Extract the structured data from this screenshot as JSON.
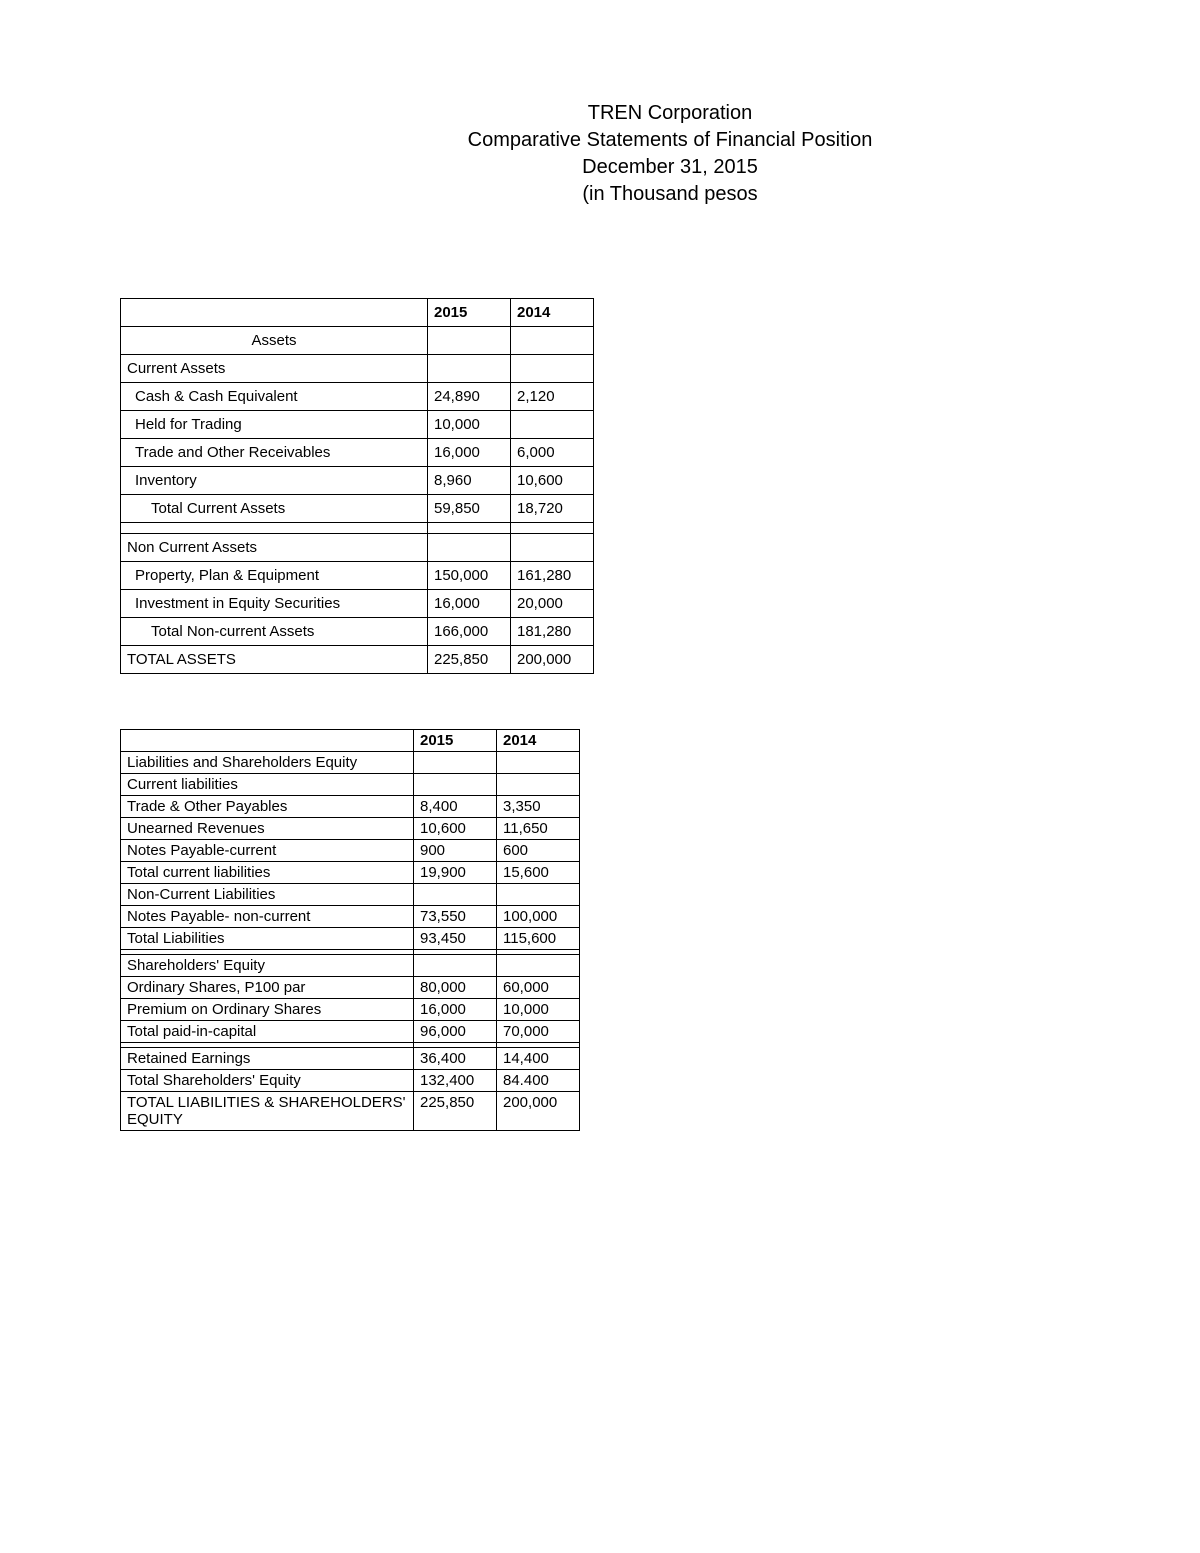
{
  "header": {
    "line1": "TREN Corporation",
    "line2": "Comparative Statements of Financial Position",
    "line3": "December 31, 2015",
    "line4": "(in Thousand pesos"
  },
  "table1": {
    "col1": "2015",
    "col2": "2014",
    "rows": [
      {
        "label": "Assets",
        "c2015": "",
        "c2014": "",
        "class": "section-center"
      },
      {
        "label": "Current Assets",
        "c2015": "",
        "c2014": "",
        "class": ""
      },
      {
        "label": "Cash & Cash Equivalent",
        "c2015": "24,890",
        "c2014": "2,120",
        "class": "indent-1"
      },
      {
        "label": "Held for Trading",
        "c2015": "10,000",
        "c2014": "",
        "class": "indent-1"
      },
      {
        "label": "Trade and Other Receivables",
        "c2015": "16,000",
        "c2014": "6,000",
        "class": "indent-1"
      },
      {
        "label": "Inventory",
        "c2015": "8,960",
        "c2014": "10,600",
        "class": "indent-1"
      },
      {
        "label": "Total Current Assets",
        "c2015": "59,850",
        "c2014": "18,720",
        "class": "indent-2"
      },
      {
        "label": "",
        "c2015": "",
        "c2014": "",
        "class": ""
      },
      {
        "label": "Non Current Assets",
        "c2015": "",
        "c2014": "",
        "class": ""
      },
      {
        "label": "Property, Plan & Equipment",
        "c2015": "150,000",
        "c2014": "161,280",
        "class": "indent-1"
      },
      {
        "label": "Investment in Equity Securities",
        "c2015": "16,000",
        "c2014": "20,000",
        "class": "indent-1"
      },
      {
        "label": "Total Non-current Assets",
        "c2015": "166,000",
        "c2014": "181,280",
        "class": "indent-2"
      },
      {
        "label": "TOTAL ASSETS",
        "c2015": "225,850",
        "c2014": "200,000",
        "class": ""
      }
    ]
  },
  "table2": {
    "col1": "2015",
    "col2": "2014",
    "rows": [
      {
        "label": "Liabilities and Shareholders Equity",
        "c2015": "",
        "c2014": "",
        "class": ""
      },
      {
        "label": "Current liabilities",
        "c2015": "",
        "c2014": "",
        "class": ""
      },
      {
        "label": "Trade & Other Payables",
        "c2015": "8,400",
        "c2014": "3,350",
        "class": "indent-1",
        "numclass": "num-center"
      },
      {
        "label": "Unearned Revenues",
        "c2015": "10,600",
        "c2014": "11,650",
        "class": "indent-2",
        "numclass": "num-center"
      },
      {
        "label": "Notes Payable-current",
        "c2015": "900",
        "c2014": "600",
        "class": "indent-2",
        "numclass": "num-center"
      },
      {
        "label": "Total current liabilities",
        "c2015": "19,900",
        "c2014": "15,600",
        "class": "indent-3",
        "numclass": "num-center"
      },
      {
        "label": "Non-Current Liabilities",
        "c2015": "",
        "c2014": "",
        "class": ""
      },
      {
        "label": "Notes Payable- non-current",
        "c2015": "73,550",
        "c2014": "100,000",
        "class": "indent-2",
        "numclass": "num-center"
      },
      {
        "label": "Total Liabilities",
        "c2015": "93,450",
        "c2014": "115,600",
        "class": "",
        "numclass": "num-center"
      },
      {
        "label": "",
        "c2015": "",
        "c2014": "",
        "class": ""
      },
      {
        "label": "Shareholders' Equity",
        "c2015": "",
        "c2014": "",
        "class": ""
      },
      {
        "label": "Ordinary Shares, P100 par",
        "c2015": "80,000",
        "c2014": "60,000",
        "class": "indent-2",
        "numclass": "num-center"
      },
      {
        "label": "Premium on Ordinary Shares",
        "c2015": "16,000",
        "c2014": "10,000",
        "class": "indent-2",
        "numclass": "num-center"
      },
      {
        "label": "Total paid-in-capital",
        "c2015": "96,000",
        "c2014": "70,000",
        "class": "indent-3",
        "numclass": "num-center"
      },
      {
        "label": "",
        "c2015": "",
        "c2014": "",
        "class": ""
      },
      {
        "label": "Retained Earnings",
        "c2015": "36,400",
        "c2014": "14,400",
        "class": "",
        "numclass": "num-center"
      },
      {
        "label": "Total Shareholders' Equity",
        "c2015": "132,400",
        "c2014": "84.400",
        "class": "indent-2",
        "numclass": "num-center"
      },
      {
        "label": "TOTAL LIABILITIES & SHAREHOLDERS' EQUITY",
        "c2015": "225,850",
        "c2014": "200,000",
        "class": "",
        "numclass": "num-center"
      }
    ]
  }
}
